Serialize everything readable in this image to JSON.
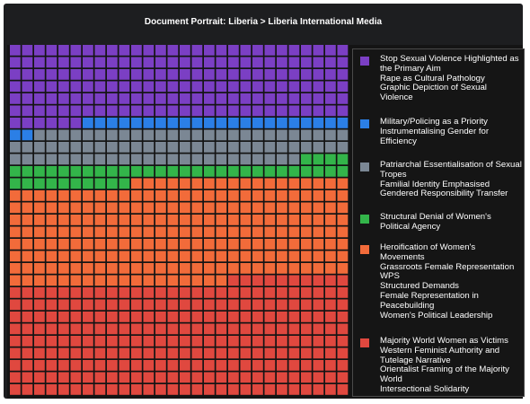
{
  "title": "Document Portrait: Liberia > Liberia International Media",
  "chart_data": {
    "type": "waffle",
    "grid": {
      "columns": 28,
      "rows": 29
    },
    "categories": [
      {
        "name": "Stop Sexual Violence Highlighted as the Primary Aim Rape as Cultural Pathology Graphic Depiction of Sexual Violence",
        "color": "#7b3fc4",
        "cells": 174
      },
      {
        "name": "Military/Policing as a Priority Instrumentalising Gender for Efficiency",
        "color": "#2b7fe6",
        "cells": 24
      },
      {
        "name": "Patriarchal Essentialisation of Sexual Tropes Familial Identity Emphasised Gendered Responsibility Transfer",
        "color": "#7b8794",
        "cells": 78
      },
      {
        "name": "Structural Denial of Women's Political Agency",
        "color": "#33b54a",
        "cells": 42
      },
      {
        "name": "Heroification of Women's Movements Grassroots Female Representation WPS Structured Demands Female Representation in Peacebuilding Women's Political Leadership",
        "color": "#f26b3a",
        "cells": 232
      },
      {
        "name": "Majority World Women as Victims Western Feminist Authority and Tutelage Narrative Orientalist Framing of the Majority World Intersectional Solidarity",
        "color": "#e0483f",
        "cells": 262
      }
    ]
  },
  "legend": [
    {
      "color": "#7b3fc4",
      "lines": [
        "Stop Sexual Violence Highlighted as the Primary Aim",
        "Rape as Cultural Pathology",
        "Graphic Depiction of Sexual Violence"
      ]
    },
    {
      "color": "#2b7fe6",
      "lines": [
        "Military/Policing as a Priority",
        "Instrumentalising Gender for Efficiency"
      ]
    },
    {
      "color": "#7b8794",
      "lines": [
        "Patriarchal Essentialisation of Sexual Tropes",
        "Familial Identity Emphasised",
        "Gendered Responsibility Transfer"
      ]
    },
    {
      "color": "#33b54a",
      "lines": [
        "Structural Denial of Women's Political Agency"
      ]
    },
    {
      "color": "#f26b3a",
      "lines": [
        "Heroification of Women's Movements",
        "Grassroots Female Representation",
        "WPS",
        "Structured Demands",
        "Female Representation in Peacebuilding",
        "Women's Political Leadership"
      ]
    },
    {
      "color": "#e0483f",
      "lines": [
        "Majority World Women as Victims",
        "Western Feminist Authority and",
        "Tutelage Narrative",
        "Orientalist Framing of the Majority",
        "World",
        "Intersectional Solidarity"
      ]
    }
  ]
}
